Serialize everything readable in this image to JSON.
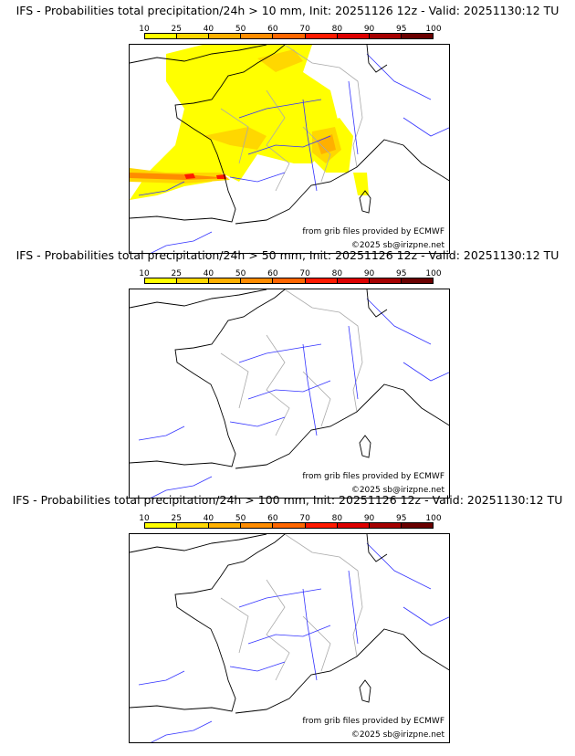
{
  "colorbar": {
    "ticks": [
      "10",
      "25",
      "40",
      "50",
      "60",
      "70",
      "80",
      "90",
      "95",
      "100"
    ],
    "colors": [
      "#ffff00",
      "#ffd700",
      "#ffb000",
      "#ff8c00",
      "#ff6600",
      "#ff1a00",
      "#dd0000",
      "#a50000",
      "#6a0000"
    ]
  },
  "panels": [
    {
      "title": "IFS - Probabilities total precipitation/24h > 10 mm, Init: 20251126 12z - Valid: 20251130:12 TU",
      "has_precip": true
    },
    {
      "title": "IFS - Probabilities total precipitation/24h > 50 mm, Init: 20251126 12z - Valid: 20251130:12 TU",
      "has_precip": false
    },
    {
      "title": "IFS - Probabilities total precipitation/24h > 100 mm, Init: 20251126 12z - Valid: 20251130:12 TU",
      "has_precip": false
    }
  ],
  "credits": {
    "source": "from grib files provided by ECMWF",
    "copyright": "©2025 sb@irizpne.net"
  }
}
